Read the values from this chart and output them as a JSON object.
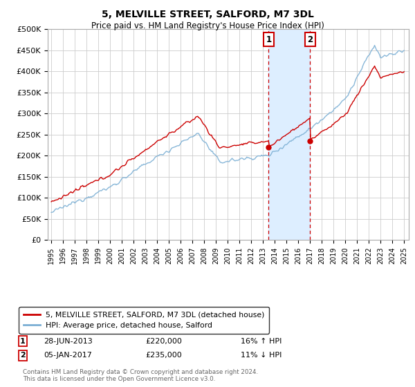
{
  "title": "5, MELVILLE STREET, SALFORD, M7 3DL",
  "subtitle": "Price paid vs. HM Land Registry's House Price Index (HPI)",
  "ylim": [
    0,
    500000
  ],
  "yticks": [
    0,
    50000,
    100000,
    150000,
    200000,
    250000,
    300000,
    350000,
    400000,
    450000,
    500000
  ],
  "ytick_labels": [
    "£0",
    "£50K",
    "£100K",
    "£150K",
    "£200K",
    "£250K",
    "£300K",
    "£350K",
    "£400K",
    "£450K",
    "£500K"
  ],
  "transaction1": {
    "date_num": 2013.49,
    "price": 220000,
    "label": "1",
    "text": "28-JUN-2013",
    "amount": "£220,000",
    "hpi_change": "16% ↑ HPI"
  },
  "transaction2": {
    "date_num": 2017.01,
    "price": 235000,
    "label": "2",
    "text": "05-JAN-2017",
    "amount": "£235,000",
    "hpi_change": "11% ↓ HPI"
  },
  "legend_line1": "5, MELVILLE STREET, SALFORD, M7 3DL (detached house)",
  "legend_line2": "HPI: Average price, detached house, Salford",
  "footer": "Contains HM Land Registry data © Crown copyright and database right 2024.\nThis data is licensed under the Open Government Licence v3.0.",
  "red_color": "#cc0000",
  "blue_color": "#7bafd4",
  "shade_color": "#ddeeff",
  "bg_color": "#ffffff",
  "grid_color": "#cccccc"
}
